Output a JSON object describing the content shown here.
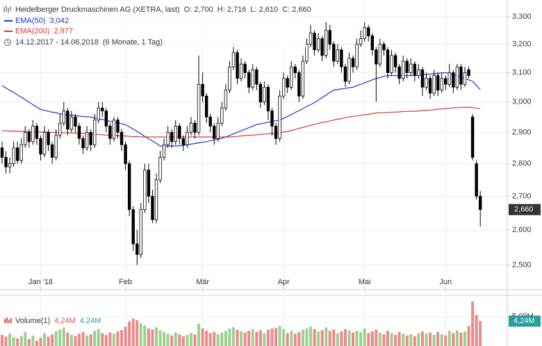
{
  "chart_data": {
    "type": "candlestick",
    "title": "Heidelberger Druckmaschinen AG (XETRA, last)",
    "last_candle_labels": {
      "open": "O: 2,700",
      "high": "H: 2,716",
      "low": "L: 2,610",
      "close": "C: 2,660"
    },
    "date_range": "14.12.2017 - 14.06.2018",
    "period": "(6 Monate, 1 Tag)",
    "last_price_label": "2,660",
    "candle_color": "#000000",
    "up_fill": "#ffffff",
    "log_scale": true,
    "grid": true,
    "ylim": [
      2.474,
      3.357
    ],
    "yticks": [
      {
        "value": 3.3,
        "label": "3,300"
      },
      {
        "value": 3.2,
        "label": "3,200"
      },
      {
        "value": 3.1,
        "label": "3,100"
      },
      {
        "value": 3.0,
        "label": "3,000"
      },
      {
        "value": 2.9,
        "label": "2,900"
      },
      {
        "value": 2.8,
        "label": "2,800"
      },
      {
        "value": 2.7,
        "label": "2,700"
      },
      {
        "value": 2.6,
        "label": "2,600"
      },
      {
        "value": 2.5,
        "label": "2,500"
      }
    ],
    "categories": [
      null,
      null,
      null,
      null,
      null,
      null,
      null,
      null,
      null,
      null,
      "Jan '18",
      null,
      null,
      null,
      null,
      null,
      null,
      null,
      null,
      null,
      null,
      null,
      null,
      null,
      null,
      null,
      null,
      null,
      null,
      null,
      null,
      null,
      "Feb",
      null,
      null,
      null,
      null,
      null,
      null,
      null,
      null,
      null,
      null,
      null,
      null,
      null,
      null,
      null,
      null,
      null,
      null,
      null,
      "Mär",
      null,
      null,
      null,
      null,
      null,
      null,
      null,
      null,
      null,
      null,
      null,
      null,
      null,
      null,
      null,
      null,
      null,
      null,
      null,
      null,
      "Apr",
      null,
      null,
      null,
      null,
      null,
      null,
      null,
      null,
      null,
      null,
      null,
      null,
      null,
      null,
      null,
      null,
      null,
      null,
      null,
      null,
      "Mai",
      null,
      null,
      null,
      null,
      null,
      null,
      null,
      null,
      null,
      null,
      null,
      null,
      null,
      null,
      null,
      null,
      null,
      null,
      null,
      null,
      "Jun",
      null,
      null,
      null,
      null,
      null,
      null,
      null,
      null,
      null
    ],
    "open": [
      2.85,
      2.82,
      2.79,
      2.8,
      2.85,
      2.81,
      2.86,
      2.9,
      2.87,
      2.92,
      2.88,
      2.83,
      2.9,
      2.86,
      2.82,
      2.89,
      2.93,
      2.97,
      2.91,
      2.95,
      2.92,
      2.88,
      2.85,
      2.9,
      2.86,
      2.94,
      2.98,
      2.97,
      2.92,
      2.88,
      2.94,
      2.9,
      2.86,
      2.8,
      2.66,
      2.56,
      2.53,
      2.66,
      2.78,
      2.7,
      2.63,
      2.75,
      2.82,
      2.86,
      2.9,
      2.87,
      2.92,
      2.88,
      2.86,
      2.9,
      2.93,
      2.9,
      3.06,
      3.02,
      2.95,
      2.92,
      2.88,
      2.93,
      2.98,
      3.04,
      3.12,
      3.17,
      3.08,
      3.13,
      3.1,
      3.05,
      3.11,
      3.06,
      3.0,
      3.05,
      2.97,
      2.92,
      2.88,
      3.02,
      3.08,
      3.05,
      3.12,
      3.1,
      3.02,
      3.14,
      3.2,
      3.24,
      3.18,
      3.22,
      3.16,
      3.25,
      3.2,
      3.14,
      3.18,
      3.12,
      3.07,
      3.15,
      3.12,
      3.2,
      3.22,
      3.26,
      3.23,
      3.18,
      3.13,
      3.2,
      3.18,
      3.1,
      3.16,
      3.12,
      3.08,
      3.14,
      3.1,
      3.13,
      3.09,
      3.11,
      3.05,
      3.08,
      3.03,
      3.09,
      3.04,
      3.08,
      3.06,
      3.1,
      3.05,
      3.12,
      3.06,
      3.11,
      2.95,
      2.8,
      2.7
    ],
    "high": [
      2.87,
      2.84,
      2.82,
      2.87,
      2.87,
      2.88,
      2.92,
      2.91,
      2.94,
      2.93,
      2.89,
      2.92,
      2.91,
      2.87,
      2.91,
      2.96,
      3.0,
      2.98,
      2.97,
      2.96,
      2.93,
      2.89,
      2.92,
      2.91,
      2.96,
      3.0,
      3.0,
      2.98,
      2.93,
      2.95,
      2.95,
      2.91,
      2.87,
      2.81,
      2.67,
      2.6,
      2.68,
      2.8,
      2.8,
      2.72,
      2.77,
      2.84,
      2.88,
      2.92,
      2.91,
      2.94,
      2.93,
      2.89,
      2.92,
      2.95,
      2.94,
      3.16,
      3.1,
      3.03,
      2.96,
      2.93,
      2.95,
      3.0,
      3.06,
      3.14,
      3.2,
      3.18,
      3.15,
      3.14,
      3.11,
      3.13,
      3.12,
      3.07,
      3.07,
      3.06,
      2.98,
      2.93,
      3.04,
      3.1,
      3.09,
      3.14,
      3.13,
      3.11,
      3.16,
      3.22,
      3.27,
      3.25,
      3.24,
      3.23,
      3.28,
      3.27,
      3.21,
      3.2,
      3.19,
      3.13,
      3.17,
      3.16,
      3.22,
      3.25,
      3.28,
      3.27,
      3.24,
      3.19,
      3.22,
      3.21,
      3.19,
      3.18,
      3.17,
      3.13,
      3.16,
      3.15,
      3.15,
      3.14,
      3.13,
      3.12,
      3.1,
      3.09,
      3.11,
      3.1,
      3.1,
      3.09,
      3.13,
      3.11,
      3.13,
      3.13,
      3.12,
      3.12,
      2.96,
      2.81,
      2.716
    ],
    "low": [
      2.8,
      2.77,
      2.77,
      2.79,
      2.8,
      2.8,
      2.85,
      2.85,
      2.86,
      2.86,
      2.81,
      2.82,
      2.84,
      2.8,
      2.81,
      2.88,
      2.92,
      2.89,
      2.9,
      2.9,
      2.86,
      2.83,
      2.84,
      2.84,
      2.85,
      2.93,
      2.95,
      2.9,
      2.86,
      2.87,
      2.88,
      2.84,
      2.78,
      2.64,
      2.54,
      2.5,
      2.52,
      2.65,
      2.68,
      2.62,
      2.62,
      2.74,
      2.81,
      2.85,
      2.85,
      2.86,
      2.86,
      2.84,
      2.85,
      2.89,
      2.88,
      2.89,
      3.0,
      2.93,
      2.9,
      2.86,
      2.87,
      2.92,
      2.97,
      3.03,
      3.11,
      3.06,
      3.07,
      3.08,
      3.03,
      3.04,
      3.04,
      2.98,
      2.99,
      2.94,
      2.89,
      2.86,
      2.87,
      3.01,
      3.03,
      3.04,
      3.08,
      3.0,
      3.01,
      3.13,
      3.19,
      3.16,
      3.17,
      3.14,
      3.15,
      3.18,
      3.12,
      3.13,
      3.1,
      3.05,
      3.06,
      3.1,
      3.11,
      3.19,
      3.21,
      3.21,
      3.16,
      3.0,
      3.12,
      3.16,
      3.08,
      3.09,
      3.1,
      3.06,
      3.07,
      3.08,
      3.09,
      3.07,
      3.08,
      3.02,
      3.04,
      3.01,
      3.02,
      3.02,
      3.03,
      3.04,
      3.05,
      3.03,
      3.04,
      3.04,
      3.05,
      3.08,
      2.81,
      2.69,
      2.61
    ],
    "close": [
      2.82,
      2.79,
      2.8,
      2.85,
      2.81,
      2.86,
      2.9,
      2.87,
      2.92,
      2.88,
      2.83,
      2.9,
      2.86,
      2.82,
      2.89,
      2.93,
      2.97,
      2.91,
      2.95,
      2.92,
      2.88,
      2.85,
      2.9,
      2.86,
      2.94,
      2.98,
      2.97,
      2.92,
      2.88,
      2.94,
      2.9,
      2.86,
      2.8,
      2.66,
      2.56,
      2.53,
      2.66,
      2.78,
      2.7,
      2.63,
      2.75,
      2.82,
      2.86,
      2.9,
      2.87,
      2.92,
      2.88,
      2.86,
      2.9,
      2.93,
      2.9,
      3.06,
      3.02,
      2.95,
      2.92,
      2.88,
      2.93,
      2.98,
      3.04,
      3.12,
      3.17,
      3.08,
      3.13,
      3.1,
      3.05,
      3.11,
      3.06,
      3.0,
      3.05,
      2.97,
      2.92,
      2.88,
      3.02,
      3.08,
      3.05,
      3.12,
      3.1,
      3.02,
      3.14,
      3.2,
      3.24,
      3.18,
      3.22,
      3.16,
      3.25,
      3.2,
      3.14,
      3.18,
      3.12,
      3.07,
      3.15,
      3.12,
      3.2,
      3.22,
      3.26,
      3.23,
      3.18,
      3.13,
      3.2,
      3.18,
      3.1,
      3.16,
      3.12,
      3.08,
      3.14,
      3.1,
      3.13,
      3.09,
      3.11,
      3.05,
      3.08,
      3.03,
      3.09,
      3.04,
      3.08,
      3.06,
      3.1,
      3.05,
      3.12,
      3.06,
      3.1,
      3.09,
      2.82,
      2.7,
      2.66
    ],
    "series": [
      {
        "name": "EMA(50)",
        "color": "#1f2fd0",
        "last_label": "3,042",
        "values": [
          3.055,
          3.047,
          3.039,
          3.032,
          3.024,
          3.016,
          3.008,
          2.999,
          2.991,
          2.983,
          2.975,
          2.972,
          2.969,
          2.966,
          2.964,
          2.961,
          2.958,
          2.957,
          2.956,
          2.955,
          2.953,
          2.952,
          2.951,
          2.95,
          2.947,
          2.944,
          2.942,
          2.939,
          2.936,
          2.933,
          2.931,
          2.928,
          2.925,
          2.918,
          2.91,
          2.903,
          2.895,
          2.887,
          2.879,
          2.872,
          2.864,
          2.856,
          2.856,
          2.856,
          2.856,
          2.856,
          2.856,
          2.858,
          2.86,
          2.862,
          2.864,
          2.866,
          2.868,
          2.87,
          2.873,
          2.875,
          2.878,
          2.88,
          2.885,
          2.89,
          2.895,
          2.9,
          2.905,
          2.91,
          2.915,
          2.92,
          2.925,
          2.928,
          2.93,
          2.933,
          2.935,
          2.938,
          2.94,
          2.946,
          2.952,
          2.958,
          2.965,
          2.971,
          2.978,
          2.985,
          2.991,
          2.998,
          3.006,
          3.015,
          3.023,
          3.032,
          3.04,
          3.042,
          3.044,
          3.046,
          3.048,
          3.05,
          3.055,
          3.06,
          3.065,
          3.07,
          3.075,
          3.08,
          3.083,
          3.087,
          3.09,
          3.09,
          3.09,
          3.09,
          3.09,
          3.09,
          3.09,
          3.09,
          3.091,
          3.093,
          3.094,
          3.095,
          3.096,
          3.098,
          3.099,
          3.1,
          3.097,
          3.093,
          3.09,
          3.085,
          3.08,
          3.075,
          3.07,
          3.056,
          3.042
        ]
      },
      {
        "name": "EMA(200)",
        "color": "#e0342b",
        "last_label": "2,977",
        "values": [
          2.905,
          2.905,
          2.904,
          2.904,
          2.903,
          2.903,
          2.903,
          2.902,
          2.902,
          2.901,
          2.901,
          2.901,
          2.9,
          2.9,
          2.899,
          2.899,
          2.899,
          2.898,
          2.898,
          2.897,
          2.897,
          2.896,
          2.895,
          2.894,
          2.894,
          2.893,
          2.892,
          2.891,
          2.891,
          2.89,
          2.889,
          2.888,
          2.888,
          2.887,
          2.886,
          2.886,
          2.885,
          2.885,
          2.885,
          2.885,
          2.885,
          2.885,
          2.885,
          2.885,
          2.885,
          2.885,
          2.885,
          2.885,
          2.885,
          2.885,
          2.885,
          2.885,
          2.885,
          2.885,
          2.885,
          2.885,
          2.885,
          2.885,
          2.885,
          2.885,
          2.886,
          2.887,
          2.888,
          2.889,
          2.89,
          2.891,
          2.892,
          2.893,
          2.894,
          2.895,
          2.896,
          2.897,
          2.898,
          2.901,
          2.903,
          2.906,
          2.909,
          2.913,
          2.916,
          2.919,
          2.923,
          2.926,
          2.929,
          2.932,
          2.934,
          2.937,
          2.94,
          2.943,
          2.945,
          2.948,
          2.95,
          2.952,
          2.954,
          2.956,
          2.957,
          2.959,
          2.961,
          2.963,
          2.964,
          2.964,
          2.965,
          2.966,
          2.966,
          2.967,
          2.968,
          2.968,
          2.969,
          2.969,
          2.97,
          2.971,
          2.972,
          2.973,
          2.974,
          2.976,
          2.977,
          2.978,
          2.979,
          2.98,
          2.981,
          2.982,
          2.982,
          2.983,
          2.981,
          2.979,
          2.977
        ]
      }
    ],
    "volume": {
      "name": "Volume(1)",
      "last_labels": [
        "4,24M",
        "4,24M"
      ],
      "badge_label": "4,24M",
      "up_color": "#9dd08f",
      "down_color": "#ea8a8a",
      "label_colors": [
        "#d9534f",
        "#2a9d9d"
      ],
      "ylim": [
        0,
        8300000
      ],
      "yticks": [
        {
          "value": 5000000,
          "label": "5,00M"
        }
      ],
      "values": [
        1900000,
        1600000,
        2100000,
        1500000,
        1300000,
        1700000,
        2400000,
        1200000,
        1800000,
        900000,
        1400000,
        2200000,
        1600000,
        2000000,
        2500000,
        2800000,
        3100000,
        2300000,
        1900000,
        1700000,
        2100000,
        2400000,
        1800000,
        2000000,
        2600000,
        2900000,
        2200000,
        1900000,
        2300000,
        2100000,
        2500000,
        2700000,
        3300000,
        4200000,
        4700000,
        4400000,
        3900000,
        3500000,
        3000000,
        2800000,
        3200000,
        2700000,
        2400000,
        2100000,
        1800000,
        2300000,
        2000000,
        1700000,
        1900000,
        2200000,
        2000000,
        3800000,
        3000000,
        2600000,
        2200000,
        2400000,
        2000000,
        2300000,
        2600000,
        3000000,
        3200000,
        2800000,
        2500000,
        2300000,
        2600000,
        2900000,
        2400000,
        2700000,
        2200000,
        2800000,
        3000000,
        3100000,
        3400000,
        2900000,
        2200000,
        2600000,
        2100000,
        2400000,
        2800000,
        3000000,
        3300000,
        2900000,
        2500000,
        2700000,
        3200000,
        2600000,
        2800000,
        2200000,
        2500000,
        2900000,
        2700000,
        2300000,
        2600000,
        2400000,
        3000000,
        2200000,
        2500000,
        2800000,
        2300000,
        2000000,
        2600000,
        2200000,
        1900000,
        2400000,
        2100000,
        1800000,
        2000000,
        1700000,
        2200000,
        2500000,
        2100000,
        2300000,
        1900000,
        2400000,
        2000000,
        1800000,
        2600000,
        2200000,
        2700000,
        2300000,
        2500000,
        3400000,
        7600000,
        5300000,
        4240000
      ]
    }
  }
}
